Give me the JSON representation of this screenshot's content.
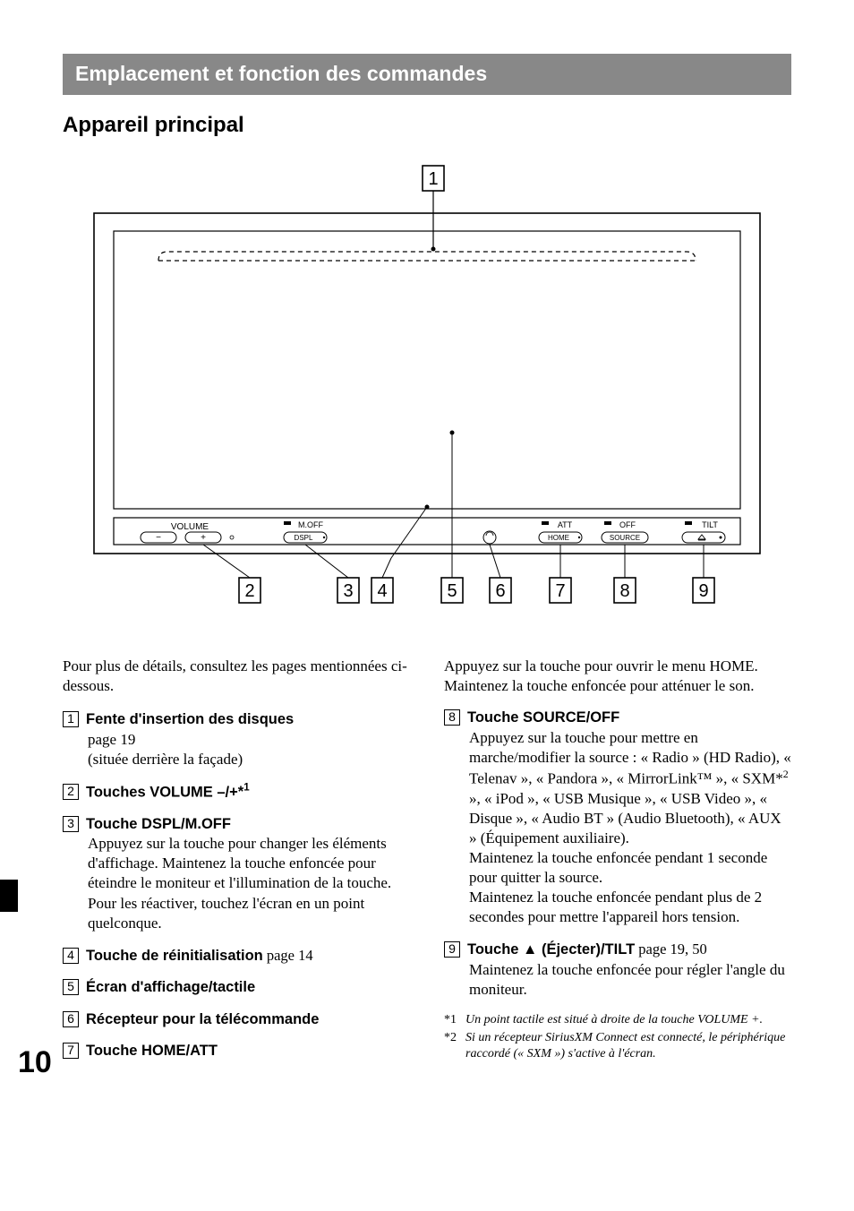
{
  "header": "Emplacement et fonction des commandes",
  "section_title": "Appareil principal",
  "diagram": {
    "labels": {
      "volume": "VOLUME",
      "moff": "M.OFF",
      "dspl": "DSPL",
      "att": "ATT",
      "home": "HOME",
      "off": "OFF",
      "source": "SOURCE",
      "tilt": "TILT"
    },
    "callouts": [
      "1",
      "2",
      "3",
      "4",
      "5",
      "6",
      "7",
      "8",
      "9"
    ]
  },
  "intro": "Pour plus de détails, consultez les pages mentionnées ci-dessous.",
  "items": [
    {
      "num": "1",
      "title": "Fente d'insertion des disques",
      "body_lines": [
        "page 19",
        "(située derrière la façade)"
      ]
    },
    {
      "num": "2",
      "title": "Touches VOLUME –/+",
      "sup": "*1",
      "body_lines": []
    },
    {
      "num": "3",
      "title": "Touche DSPL/M.OFF",
      "body_lines": [
        "Appuyez sur la touche pour changer les éléments d'affichage. Maintenez la touche enfoncée pour éteindre le moniteur et l'illumination de la touche. Pour les réactiver, touchez l'écran en un point quelconque."
      ]
    },
    {
      "num": "4",
      "title": "Touche de réinitialisation",
      "title_after": "  page 14",
      "body_lines": []
    },
    {
      "num": "5",
      "title": "Écran d'affichage/tactile",
      "body_lines": []
    },
    {
      "num": "6",
      "title": "Récepteur pour la télécommande",
      "body_lines": []
    },
    {
      "num": "7",
      "title": "Touche HOME/ATT",
      "body_lines": []
    }
  ],
  "items_col2_continue": {
    "seven_body": [
      "Appuyez sur la touche pour ouvrir le menu HOME.",
      "Maintenez la touche enfoncée pour atténuer le son."
    ]
  },
  "items_col2": [
    {
      "num": "8",
      "title": "Touche SOURCE/OFF",
      "body_html": "Appuyez sur la touche pour mettre en marche/modifier la source : « Radio » (HD Radio), « Telenav », « Pandora », « MirrorLink™ », « SXM*<span class=\"sup\">2</span> », « iPod », « USB Musique », « USB Video », « Disque », « Audio BT » (Audio Bluetooth), « AUX » (Équipement auxiliaire).<br>Maintenez la touche enfoncée pendant 1 seconde pour quitter la source.<br>Maintenez la touche enfoncée pendant plus de 2 secondes pour mettre l'appareil hors tension."
    },
    {
      "num": "9",
      "title": "Touche ▲ (Éjecter)/TILT",
      "title_after": "  page 19, 50",
      "body_lines": [
        "Maintenez la touche enfoncée pour régler l'angle du moniteur."
      ]
    }
  ],
  "footnotes": [
    {
      "label": "*1",
      "text": "Un point tactile est situé à droite de la touche VOLUME +."
    },
    {
      "label": "*2",
      "text": "Si un récepteur SiriusXM Connect est connecté, le périphérique raccordé (« SXM ») s'active à l'écran."
    }
  ],
  "page_number": "10"
}
